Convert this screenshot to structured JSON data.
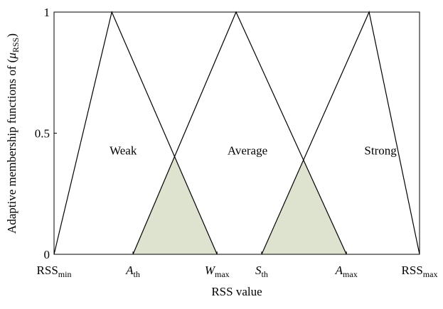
{
  "chart_data": {
    "type": "line",
    "xlabel": "RSS value",
    "ylabel": [
      "Adaptive membership functions of (",
      "μ",
      "RSS",
      ")"
    ],
    "xlim": [
      0,
      100
    ],
    "ylim": [
      0,
      1
    ],
    "xticks": [
      {
        "value": 0,
        "label": "RSS",
        "label_sub": "min"
      },
      {
        "value": 21.6,
        "label": "A",
        "label_sub": "th"
      },
      {
        "value": 44.6,
        "label": "W",
        "label_sub": "max"
      },
      {
        "value": 56.8,
        "label": "S",
        "label_sub": "th"
      },
      {
        "value": 80,
        "label": "A",
        "label_sub": "max"
      },
      {
        "value": 100,
        "label": "RSS",
        "label_sub": "max"
      }
    ],
    "yticks": [
      0,
      0.5,
      1
    ],
    "overlap_fill": "#dde3cf",
    "series": [
      {
        "name": "Weak",
        "color": "#000000",
        "x": [
          0,
          15.8,
          44.6
        ],
        "values": [
          0,
          1,
          0
        ]
      },
      {
        "name": "Average",
        "color": "#000000",
        "x": [
          21.6,
          49.8,
          80
        ],
        "values": [
          0,
          1,
          0
        ]
      },
      {
        "name": "Strong",
        "color": "#000000",
        "x": [
          56.8,
          86.2,
          100
        ],
        "values": [
          0,
          1,
          0
        ]
      }
    ]
  }
}
